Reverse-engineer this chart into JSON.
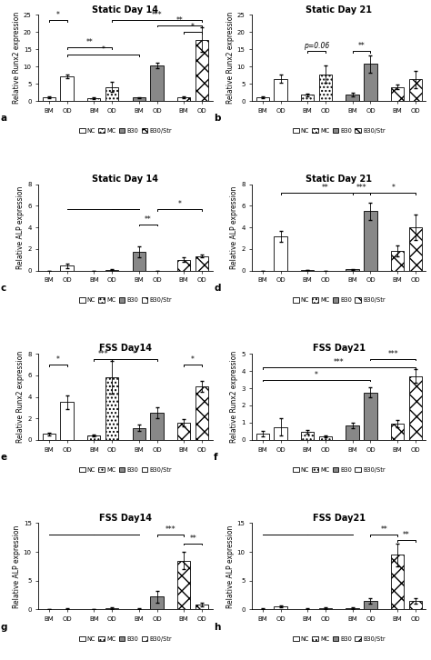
{
  "panels": [
    {
      "id": "a",
      "title": "Static Day 14",
      "ylabel": "Relative Runx2 expression",
      "ylim": [
        0,
        25
      ],
      "yticks": [
        0,
        5,
        10,
        15,
        20,
        25
      ],
      "bm_values": [
        1.2,
        0.9,
        1.0,
        1.2
      ],
      "od_values": [
        7.2,
        4.1,
        10.3,
        17.8
      ],
      "bm_errors": [
        0.3,
        0.2,
        0.2,
        0.3
      ],
      "od_errors": [
        0.5,
        1.5,
        0.8,
        3.5
      ],
      "significance": [
        {
          "from": "NC_BM",
          "to": "NC_OD",
          "y": 23.5,
          "label": "*"
        },
        {
          "from": "NC_OD",
          "to": "MC_OD",
          "y": 15.5,
          "label": "**"
        },
        {
          "from": "NC_OD",
          "to": "B30_BM",
          "y": 13.5,
          "label": "*"
        },
        {
          "from": "B30_OD",
          "to": "B30str_OD",
          "y": 22.0,
          "label": "**"
        },
        {
          "from": "MC_OD",
          "to": "B30str_OD",
          "y": 23.5,
          "label": "***"
        },
        {
          "from": "B30str_BM",
          "to": "B30str_OD",
          "y": 20.0,
          "label": "*"
        }
      ]
    },
    {
      "id": "b",
      "title": "Static Day 21",
      "ylabel": "Relative Runx2 expression",
      "ylim": [
        0,
        25
      ],
      "yticks": [
        0,
        5,
        10,
        15,
        20,
        25
      ],
      "bm_values": [
        1.1,
        1.8,
        2.0,
        4.1
      ],
      "od_values": [
        6.5,
        7.8,
        10.8,
        6.3
      ],
      "bm_errors": [
        0.2,
        0.4,
        0.5,
        0.6
      ],
      "od_errors": [
        1.2,
        2.5,
        2.5,
        2.5
      ],
      "significance": [
        {
          "from": "MC_BM",
          "to": "MC_OD",
          "y": 14.5,
          "label": "p=0.06"
        },
        {
          "from": "B30_BM",
          "to": "B30_OD",
          "y": 14.5,
          "label": "**"
        }
      ]
    },
    {
      "id": "c",
      "title": "Static Day 14",
      "ylabel": "Relative ALP expression",
      "ylim": [
        0,
        8
      ],
      "yticks": [
        0,
        2,
        4,
        6,
        8
      ],
      "bm_values": [
        0.0,
        0.0,
        1.75,
        1.0
      ],
      "od_values": [
        0.45,
        0.08,
        0.0,
        1.35
      ],
      "bm_errors": [
        0.0,
        0.0,
        0.5,
        0.2
      ],
      "od_errors": [
        0.2,
        0.05,
        0.0,
        0.15
      ],
      "significance": [
        {
          "from": "NC_OD",
          "to": "B30_BM",
          "y": 5.7,
          "label": "",
          "line_only": true
        },
        {
          "from": "MC_OD",
          "to": "B30_BM",
          "y": 5.7,
          "label": "",
          "line_only": true
        },
        {
          "from": "B30_BM",
          "to": "B30_OD",
          "y": 4.3,
          "label": "**"
        },
        {
          "from": "B30_OD",
          "to": "B30str_OD",
          "y": 5.7,
          "label": "*"
        }
      ]
    },
    {
      "id": "d",
      "title": "Static Day 21",
      "ylabel": "Relative ALP expression",
      "ylim": [
        0,
        8
      ],
      "yticks": [
        0,
        2,
        4,
        6,
        8
      ],
      "bm_values": [
        0.0,
        0.05,
        0.1,
        1.8
      ],
      "od_values": [
        3.2,
        0.0,
        5.5,
        4.0
      ],
      "bm_errors": [
        0.0,
        0.02,
        0.05,
        0.5
      ],
      "od_errors": [
        0.5,
        0.0,
        0.8,
        1.2
      ],
      "significance": [
        {
          "from": "NC_OD",
          "to": "B30_OD",
          "y": 7.2,
          "label": "**"
        },
        {
          "from": "B30_BM",
          "to": "B30_OD",
          "y": 7.2,
          "label": "***"
        },
        {
          "from": "B30_OD",
          "to": "B30str_OD",
          "y": 7.2,
          "label": "*"
        }
      ]
    },
    {
      "id": "e",
      "title": "FSS Day14",
      "ylabel": "Relative Runx2 expression",
      "ylim": [
        0,
        8
      ],
      "yticks": [
        0,
        2,
        4,
        6,
        8
      ],
      "bm_values": [
        0.55,
        0.4,
        1.1,
        1.6
      ],
      "od_values": [
        3.5,
        5.8,
        2.5,
        5.0
      ],
      "bm_errors": [
        0.15,
        0.1,
        0.3,
        0.3
      ],
      "od_errors": [
        0.6,
        1.5,
        0.5,
        0.5
      ],
      "significance": [
        {
          "from": "NC_BM",
          "to": "NC_OD",
          "y": 7.0,
          "label": "*"
        },
        {
          "from": "MC_BM",
          "to": "MC_OD",
          "y": 7.5,
          "label": "***"
        },
        {
          "from": "MC_OD",
          "to": "B30_OD",
          "y": 7.5,
          "label": "*"
        },
        {
          "from": "B30str_BM",
          "to": "B30str_OD",
          "y": 7.0,
          "label": "*"
        }
      ]
    },
    {
      "id": "f",
      "title": "FSS Day21",
      "ylabel": "Relative Runx2 expression",
      "ylim": [
        0,
        5
      ],
      "yticks": [
        0,
        1,
        2,
        3,
        4,
        5
      ],
      "bm_values": [
        0.38,
        0.48,
        0.85,
        0.95
      ],
      "od_values": [
        0.75,
        0.2,
        2.75,
        3.7
      ],
      "bm_errors": [
        0.15,
        0.1,
        0.15,
        0.2
      ],
      "od_errors": [
        0.5,
        0.05,
        0.3,
        0.4
      ],
      "significance": [
        {
          "from": "NC_BM",
          "to": "B30_OD",
          "y": 3.5,
          "label": "*"
        },
        {
          "from": "NC_BM",
          "to": "B30str_OD",
          "y": 4.2,
          "label": "***"
        },
        {
          "from": "B30_OD",
          "to": "B30str_OD",
          "y": 4.7,
          "label": "***"
        }
      ]
    },
    {
      "id": "g",
      "title": "FSS Day14",
      "ylabel": "Relative ALP expression",
      "ylim": [
        0,
        15
      ],
      "yticks": [
        0,
        5,
        10,
        15
      ],
      "bm_values": [
        0.05,
        0.05,
        0.1,
        8.5
      ],
      "od_values": [
        0.1,
        0.2,
        2.2,
        0.8
      ],
      "bm_errors": [
        0.02,
        0.02,
        0.05,
        1.5
      ],
      "od_errors": [
        0.05,
        0.1,
        1.0,
        0.3
      ],
      "significance": [
        {
          "from": "NC_BM",
          "to": "MC_BM",
          "y": 13.0,
          "label": "",
          "line_only": true
        },
        {
          "from": "MC_BM",
          "to": "B30_BM",
          "y": 13.0,
          "label": "",
          "line_only": true
        },
        {
          "from": "B30str_BM",
          "to": "B30str_OD",
          "y": 11.5,
          "label": "**"
        },
        {
          "from": "B30_OD",
          "to": "B30str_BM",
          "y": 13.0,
          "label": "***"
        }
      ]
    },
    {
      "id": "h",
      "title": "FSS Day21",
      "ylabel": "Relative ALP expression",
      "ylim": [
        0,
        15
      ],
      "yticks": [
        0,
        5,
        10,
        15
      ],
      "bm_values": [
        0.1,
        0.1,
        0.2,
        9.5
      ],
      "od_values": [
        0.5,
        0.2,
        1.5,
        1.5
      ],
      "bm_errors": [
        0.05,
        0.05,
        0.1,
        2.0
      ],
      "od_errors": [
        0.2,
        0.1,
        0.5,
        0.5
      ],
      "significance": [
        {
          "from": "NC_BM",
          "to": "MC_BM",
          "y": 13.0,
          "label": "",
          "line_only": true
        },
        {
          "from": "MC_BM",
          "to": "B30_BM",
          "y": 13.0,
          "label": "",
          "line_only": true
        },
        {
          "from": "B30str_BM",
          "to": "B30str_OD",
          "y": 12.0,
          "label": "**"
        },
        {
          "from": "B30_OD",
          "to": "B30str_BM",
          "y": 13.0,
          "label": "**"
        }
      ]
    }
  ]
}
